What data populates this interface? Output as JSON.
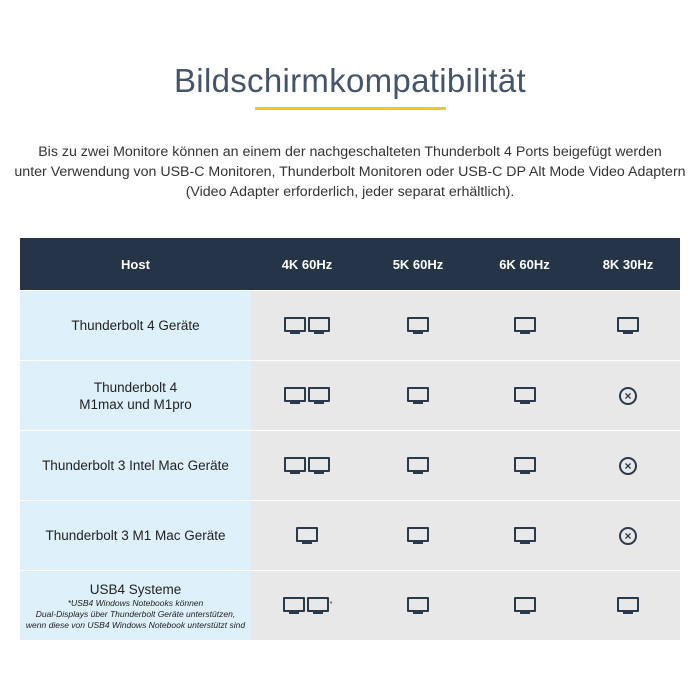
{
  "title": "Bildschirmkompatibilität",
  "intro": [
    "Bis zu zwei Monitore können an einem der nachgeschalteten Thunderbolt 4 Ports beigefügt werden",
    "unter Verwendung von USB-C Monitoren, Thunderbolt Monitoren oder USB-C DP Alt Mode Video Adaptern",
    "(Video Adapter erforderlich, jeder separat erhältlich)."
  ],
  "colors": {
    "header": "#253447",
    "accent": "#f3c623",
    "host_col": "#def0fa",
    "cell": "#e8e8e8"
  },
  "table": {
    "headers": [
      "Host",
      "4K 60Hz",
      "5K 60Hz",
      "6K 60Hz",
      "8K 30Hz"
    ],
    "rows": [
      {
        "host": [
          "Thunderbolt 4 Geräte"
        ],
        "note": [],
        "cells": [
          2,
          1,
          1,
          1
        ]
      },
      {
        "host": [
          "Thunderbolt 4",
          "M1max und M1pro"
        ],
        "note": [],
        "cells": [
          2,
          1,
          1,
          "unsupported"
        ]
      },
      {
        "host": [
          "Thunderbolt 3 Intel Mac Geräte"
        ],
        "note": [],
        "cells": [
          2,
          1,
          1,
          "unsupported"
        ]
      },
      {
        "host": [
          "Thunderbolt 3 M1 Mac Geräte"
        ],
        "note": [],
        "cells": [
          1,
          1,
          1,
          "unsupported"
        ]
      },
      {
        "host": [
          "USB4 Systeme"
        ],
        "note": [
          "*USB4 Windows Notebooks können",
          "Dual-Displays über Thunderbolt Geräte unterstützen,",
          "wenn diese von USB4 Windows Notebook unterstützt sind"
        ],
        "cells": [
          2,
          1,
          1,
          1
        ],
        "footnote_mark": "*"
      }
    ]
  }
}
